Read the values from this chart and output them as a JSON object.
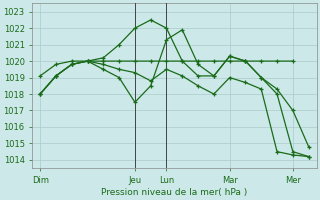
{
  "background_color": "#cce8e8",
  "grid_color": "#aacccc",
  "line_color": "#1a6b1a",
  "ylabel": "Pression niveau de la mer( hPa )",
  "ylim": [
    1013.5,
    1023.5
  ],
  "yticks": [
    1014,
    1015,
    1016,
    1017,
    1018,
    1019,
    1020,
    1021,
    1022,
    1023
  ],
  "xtick_labels": [
    "Dim",
    "Jeu",
    "Lun",
    "Mar",
    "Mer"
  ],
  "xtick_positions": [
    0,
    6,
    8,
    12,
    16
  ],
  "xlim": [
    -0.5,
    17.5
  ],
  "vlines": [
    6,
    8
  ],
  "vline_color": "#444444",
  "series": [
    {
      "x": [
        0,
        1,
        2,
        3,
        4,
        5,
        6,
        7,
        8,
        9,
        10,
        11,
        12,
        13,
        14,
        15,
        16
      ],
      "y": [
        1019.1,
        1019.8,
        1020.0,
        1020.0,
        1020.0,
        1020.0,
        1020.0,
        1020.0,
        1020.0,
        1020.0,
        1020.0,
        1020.0,
        1020.0,
        1020.0,
        1020.0,
        1020.0,
        1020.0
      ]
    },
    {
      "x": [
        0,
        1,
        2,
        3,
        4,
        5,
        6,
        7,
        8,
        9,
        10,
        11,
        12,
        13,
        14,
        15,
        16,
        17
      ],
      "y": [
        1018.0,
        1019.1,
        1019.8,
        1020.0,
        1020.2,
        1021.0,
        1022.0,
        1022.5,
        1022.0,
        1020.0,
        1019.1,
        1019.1,
        1020.3,
        1020.0,
        1019.0,
        1018.3,
        1017.0,
        1014.8
      ]
    },
    {
      "x": [
        0,
        1,
        2,
        3,
        4,
        5,
        6,
        7,
        8,
        9,
        10,
        11,
        12,
        13,
        14,
        15,
        16,
        17
      ],
      "y": [
        1018.0,
        1019.1,
        1019.8,
        1020.0,
        1019.8,
        1019.5,
        1019.3,
        1018.8,
        1019.5,
        1019.1,
        1018.5,
        1018.0,
        1019.0,
        1018.7,
        1018.3,
        1014.5,
        1014.3,
        1014.2
      ]
    },
    {
      "x": [
        0,
        1,
        2,
        3,
        4,
        5,
        6,
        7,
        8,
        9,
        10,
        11,
        12,
        13,
        14,
        15,
        16,
        17
      ],
      "y": [
        1018.0,
        1019.1,
        1019.8,
        1020.0,
        1019.5,
        1019.0,
        1017.5,
        1018.5,
        1021.3,
        1021.9,
        1019.8,
        1019.1,
        1020.3,
        1020.0,
        1019.0,
        1018.0,
        1014.5,
        1014.2
      ]
    }
  ]
}
